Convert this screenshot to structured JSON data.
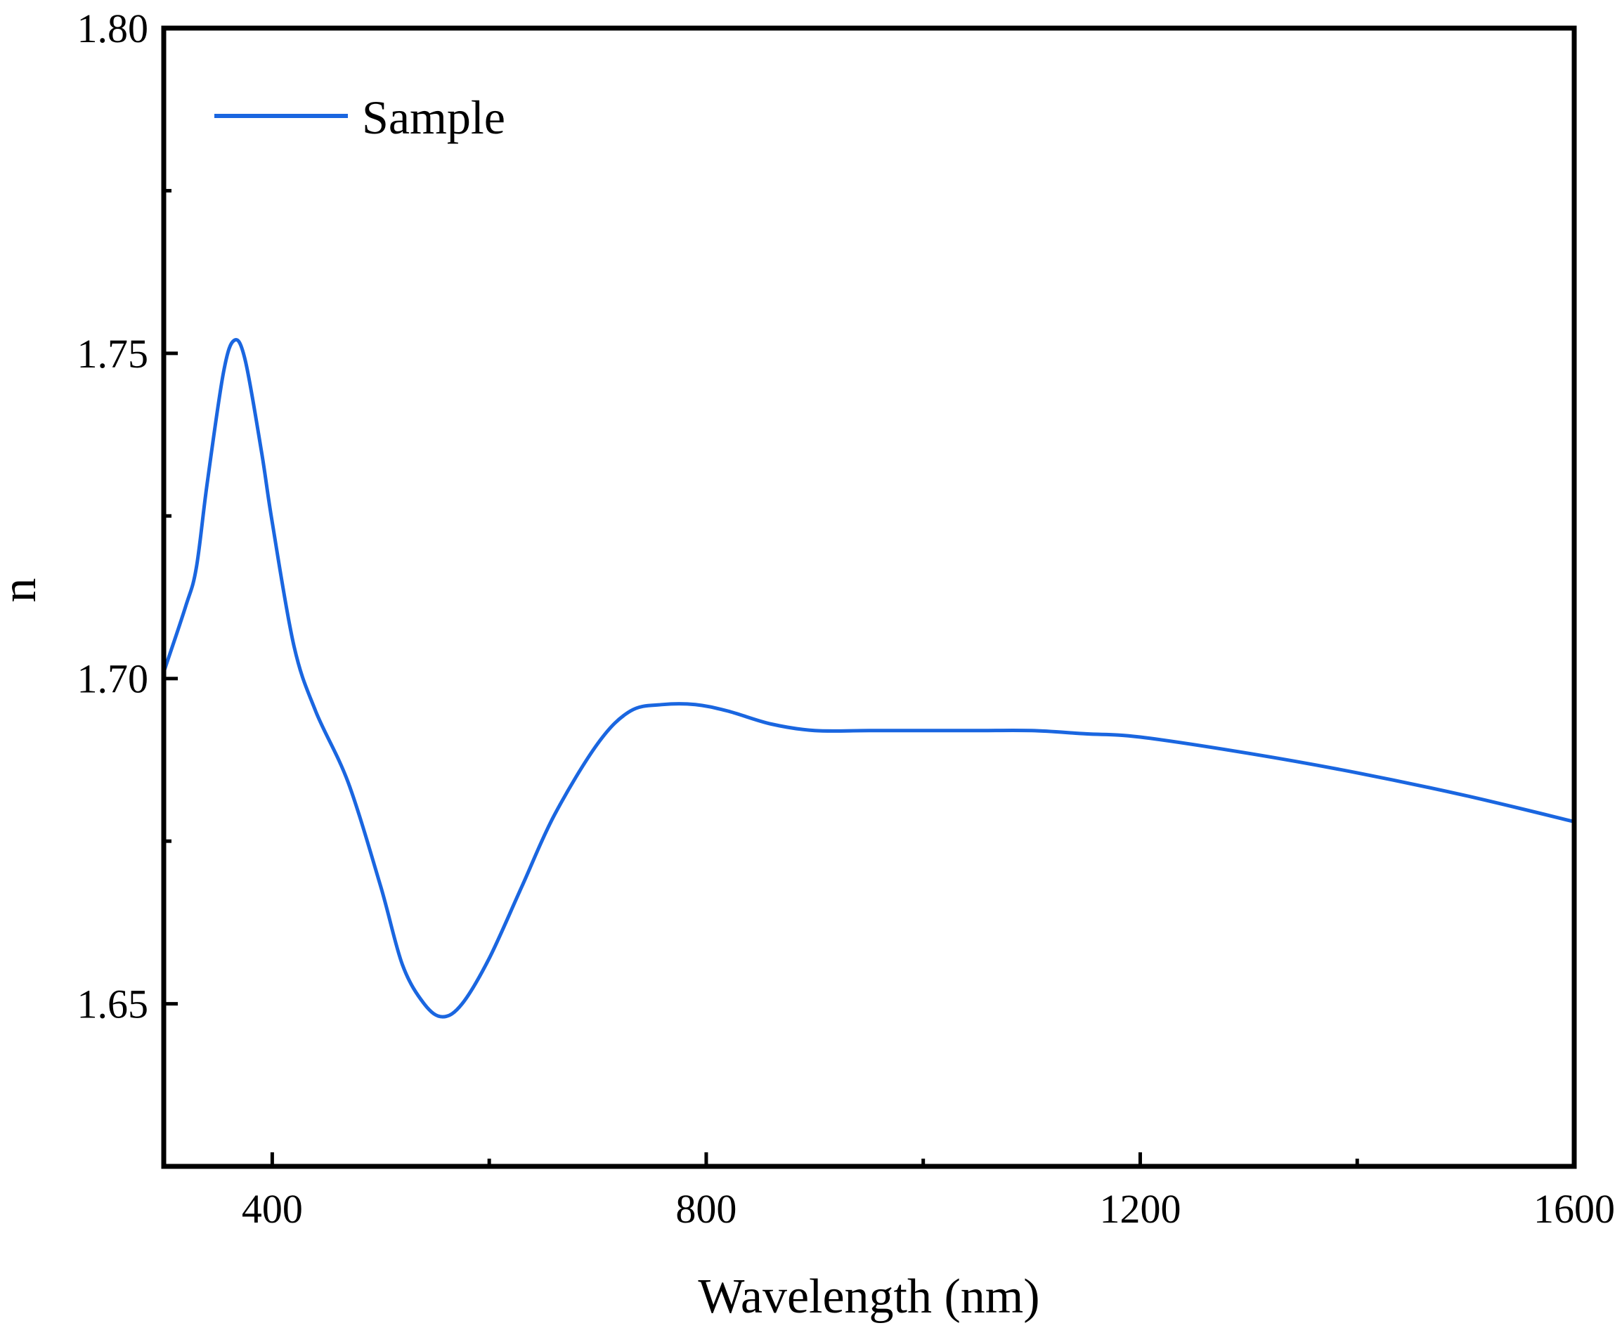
{
  "chart_data": {
    "type": "line",
    "title": "",
    "xlabel": "Wavelength (nm)",
    "ylabel": "n",
    "xlim": [
      300,
      1600
    ],
    "ylim": [
      1.625,
      1.8
    ],
    "x_ticks": [
      400,
      800,
      1200,
      1600
    ],
    "x_tick_labels": [
      "400",
      "800",
      "1200",
      "1600"
    ],
    "x_minor_ticks": [
      600,
      1000,
      1400
    ],
    "y_ticks": [
      1.65,
      1.7,
      1.75,
      1.8
    ],
    "y_tick_labels": [
      "1.65",
      "1.70",
      "1.75",
      "1.80"
    ],
    "y_minor_ticks": [
      1.675,
      1.725,
      1.775
    ],
    "grid": false,
    "legend_position": "top-left",
    "series": [
      {
        "name": "Sample",
        "color": "#1a66e0",
        "x": [
          300,
          320,
          330,
          340,
          355,
          365,
          375,
          390,
          400,
          420,
          440,
          470,
          500,
          520,
          540,
          557,
          575,
          600,
          630,
          660,
          700,
          730,
          760,
          790,
          820,
          860,
          900,
          950,
          1000,
          1050,
          1100,
          1150,
          1200,
          1300,
          1400,
          1500,
          1600
        ],
        "y": [
          1.701,
          1.711,
          1.717,
          1.73,
          1.747,
          1.752,
          1.749,
          1.735,
          1.724,
          1.705,
          1.695,
          1.684,
          1.668,
          1.656,
          1.65,
          1.648,
          1.65,
          1.657,
          1.668,
          1.679,
          1.69,
          1.695,
          1.696,
          1.696,
          1.695,
          1.693,
          1.692,
          1.692,
          1.692,
          1.692,
          1.692,
          1.6915,
          1.691,
          1.6885,
          1.6855,
          1.682,
          1.678
        ]
      }
    ]
  }
}
